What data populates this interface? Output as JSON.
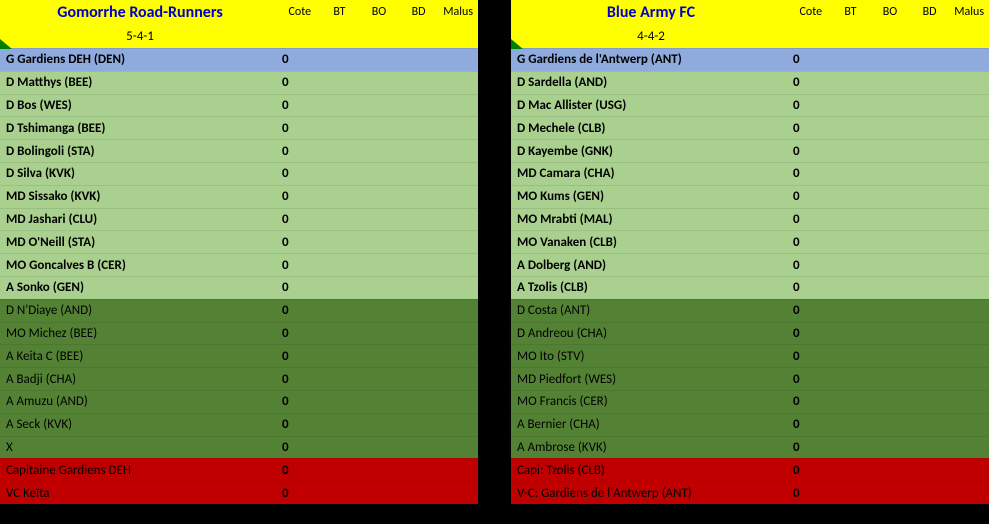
{
  "col_headers": [
    "Cote",
    "BT",
    "BO",
    "BD",
    "Malus"
  ],
  "colors": {
    "header_bg": "#ffff00",
    "header_text": "#0000cc",
    "gk_bg": "#8faadc",
    "starter_bg": "#a9d08e",
    "sub_bg": "#548235",
    "footer_bg": "#c00000",
    "triangle": "#008000"
  },
  "teams": [
    {
      "name": "Gomorrhe Road-Runners",
      "formation": "5-4-1",
      "gk": {
        "name": "G Gardiens DEH (DEN)",
        "cote": "0"
      },
      "starters": [
        {
          "name": "D Matthys (BEE)",
          "cote": "0"
        },
        {
          "name": "D Bos (WES)",
          "cote": "0"
        },
        {
          "name": "D Tshimanga (BEE)",
          "cote": "0"
        },
        {
          "name": "D Bolingoli (STA)",
          "cote": "0"
        },
        {
          "name": "D Silva (KVK)",
          "cote": "0"
        },
        {
          "name": "MD Sissako (KVK)",
          "cote": "0"
        },
        {
          "name": "MD Jashari (CLU)",
          "cote": "0"
        },
        {
          "name": "MD O'Neill (STA)",
          "cote": "0"
        },
        {
          "name": "MO Goncalves B (CER)",
          "cote": "0"
        },
        {
          "name": "A Sonko (GEN)",
          "cote": "0"
        }
      ],
      "subs": [
        {
          "name": "D N'Diaye (AND)",
          "cote": "0"
        },
        {
          "name": "MO Michez (BEE)",
          "cote": "0"
        },
        {
          "name": "A Keita C (BEE)",
          "cote": "0"
        },
        {
          "name": "A Badji (CHA)",
          "cote": "0"
        },
        {
          "name": "A Amuzu (AND)",
          "cote": "0"
        },
        {
          "name": "A Seck (KVK)",
          "cote": "0"
        },
        {
          "name": "X",
          "cote": "0"
        }
      ],
      "footer": [
        {
          "name": "Capitaine Gardiens DEH",
          "cote": "0"
        },
        {
          "name": "VC Keïta",
          "cote": "0"
        }
      ]
    },
    {
      "name": "Blue Army FC",
      "formation": "4-4-2",
      "gk": {
        "name": "G Gardiens de l'Antwerp (ANT)",
        "cote": "0"
      },
      "starters": [
        {
          "name": "D Sardella (AND)",
          "cote": "0"
        },
        {
          "name": "D Mac Allister (USG)",
          "cote": "0"
        },
        {
          "name": "D Mechele (CLB)",
          "cote": "0"
        },
        {
          "name": "D Kayembe (GNK)",
          "cote": "0"
        },
        {
          "name": "MD Camara (CHA)",
          "cote": "0"
        },
        {
          "name": "MO Kums (GEN)",
          "cote": "0"
        },
        {
          "name": "MO Mrabti (MAL)",
          "cote": "0"
        },
        {
          "name": "MO Vanaken (CLB)",
          "cote": "0"
        },
        {
          "name": "A Dolberg (AND)",
          "cote": "0"
        },
        {
          "name": "A Tzolis (CLB)",
          "cote": "0"
        }
      ],
      "subs": [
        {
          "name": "D Costa (ANT)",
          "cote": "0"
        },
        {
          "name": "D Andreou (CHA)",
          "cote": "0"
        },
        {
          "name": "MO Ito (STV)",
          "cote": "0"
        },
        {
          "name": "MD Piedfort (WES)",
          "cote": "0"
        },
        {
          "name": "MO Francis (CER)",
          "cote": "0"
        },
        {
          "name": "A Bernier (CHA)",
          "cote": "0"
        },
        {
          "name": "A Ambrose (KVK)",
          "cote": "0"
        }
      ],
      "footer": [
        {
          "name": "Capi: Tzolis (CLB)",
          "cote": "0"
        },
        {
          "name": "V-C: Gardiens de l'Antwerp (ANT)",
          "cote": "0"
        }
      ]
    }
  ]
}
